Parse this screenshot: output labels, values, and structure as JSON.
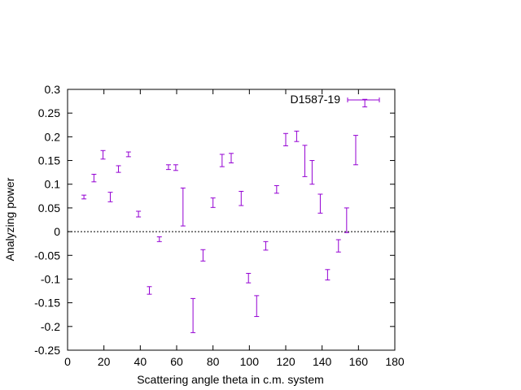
{
  "chart_data": {
    "type": "scatter",
    "title": "",
    "xlabel": "Scattering angle theta in c.m. system",
    "ylabel": "Analyzing power",
    "xlim": [
      0,
      180
    ],
    "ylim": [
      -0.25,
      0.3
    ],
    "x_ticks": [
      0,
      20,
      40,
      60,
      80,
      100,
      120,
      140,
      160,
      180
    ],
    "y_ticks": [
      -0.25,
      -0.2,
      -0.15,
      -0.1,
      -0.05,
      0,
      0.05,
      0.1,
      0.15,
      0.2,
      0.25,
      0.3
    ],
    "x_tick_labels": [
      "0",
      "20",
      "40",
      "60",
      "80",
      "100",
      "120",
      "140",
      "160",
      "180"
    ],
    "y_tick_labels": [
      "-0.25",
      "-0.2",
      "-0.15",
      "-0.1",
      "-0.05",
      "0",
      "0.05",
      "0.1",
      "0.15",
      "0.2",
      "0.25",
      "0.3"
    ],
    "zero_line": true,
    "grid": false,
    "legend": {
      "position": "top-right"
    },
    "color": "#9400d3",
    "series": [
      {
        "name": "D1587-19",
        "points": [
          {
            "x": 9,
            "y": 0.073,
            "err": 0.004
          },
          {
            "x": 14.5,
            "y": 0.113,
            "err": 0.008
          },
          {
            "x": 19.5,
            "y": 0.162,
            "err": 0.009
          },
          {
            "x": 23.5,
            "y": 0.073,
            "err": 0.01
          },
          {
            "x": 28,
            "y": 0.132,
            "err": 0.007
          },
          {
            "x": 33.5,
            "y": 0.163,
            "err": 0.005
          },
          {
            "x": 39,
            "y": 0.037,
            "err": 0.006
          },
          {
            "x": 45,
            "y": -0.124,
            "err": 0.008
          },
          {
            "x": 50.5,
            "y": -0.016,
            "err": 0.005
          },
          {
            "x": 55.5,
            "y": 0.136,
            "err": 0.005
          },
          {
            "x": 59.5,
            "y": 0.135,
            "err": 0.006
          },
          {
            "x": 63.5,
            "y": 0.052,
            "err": 0.04
          },
          {
            "x": 69,
            "y": -0.177,
            "err": 0.036
          },
          {
            "x": 74.5,
            "y": -0.05,
            "err": 0.012
          },
          {
            "x": 80,
            "y": 0.061,
            "err": 0.01
          },
          {
            "x": 85,
            "y": 0.15,
            "err": 0.013
          },
          {
            "x": 90,
            "y": 0.155,
            "err": 0.01
          },
          {
            "x": 95.5,
            "y": 0.07,
            "err": 0.015
          },
          {
            "x": 99.5,
            "y": -0.098,
            "err": 0.01
          },
          {
            "x": 104,
            "y": -0.157,
            "err": 0.022
          },
          {
            "x": 109,
            "y": -0.03,
            "err": 0.009
          },
          {
            "x": 115,
            "y": 0.089,
            "err": 0.008
          },
          {
            "x": 120,
            "y": 0.194,
            "err": 0.013
          },
          {
            "x": 126,
            "y": 0.201,
            "err": 0.011
          },
          {
            "x": 130.5,
            "y": 0.149,
            "err": 0.033
          },
          {
            "x": 134.5,
            "y": 0.125,
            "err": 0.025
          },
          {
            "x": 139,
            "y": 0.059,
            "err": 0.02
          },
          {
            "x": 143,
            "y": -0.091,
            "err": 0.011
          },
          {
            "x": 149,
            "y": -0.03,
            "err": 0.013
          },
          {
            "x": 153.5,
            "y": 0.024,
            "err": 0.026
          },
          {
            "x": 158.5,
            "y": 0.172,
            "err": 0.031
          },
          {
            "x": 163.5,
            "y": 0.271,
            "err": 0.008
          }
        ]
      }
    ]
  }
}
